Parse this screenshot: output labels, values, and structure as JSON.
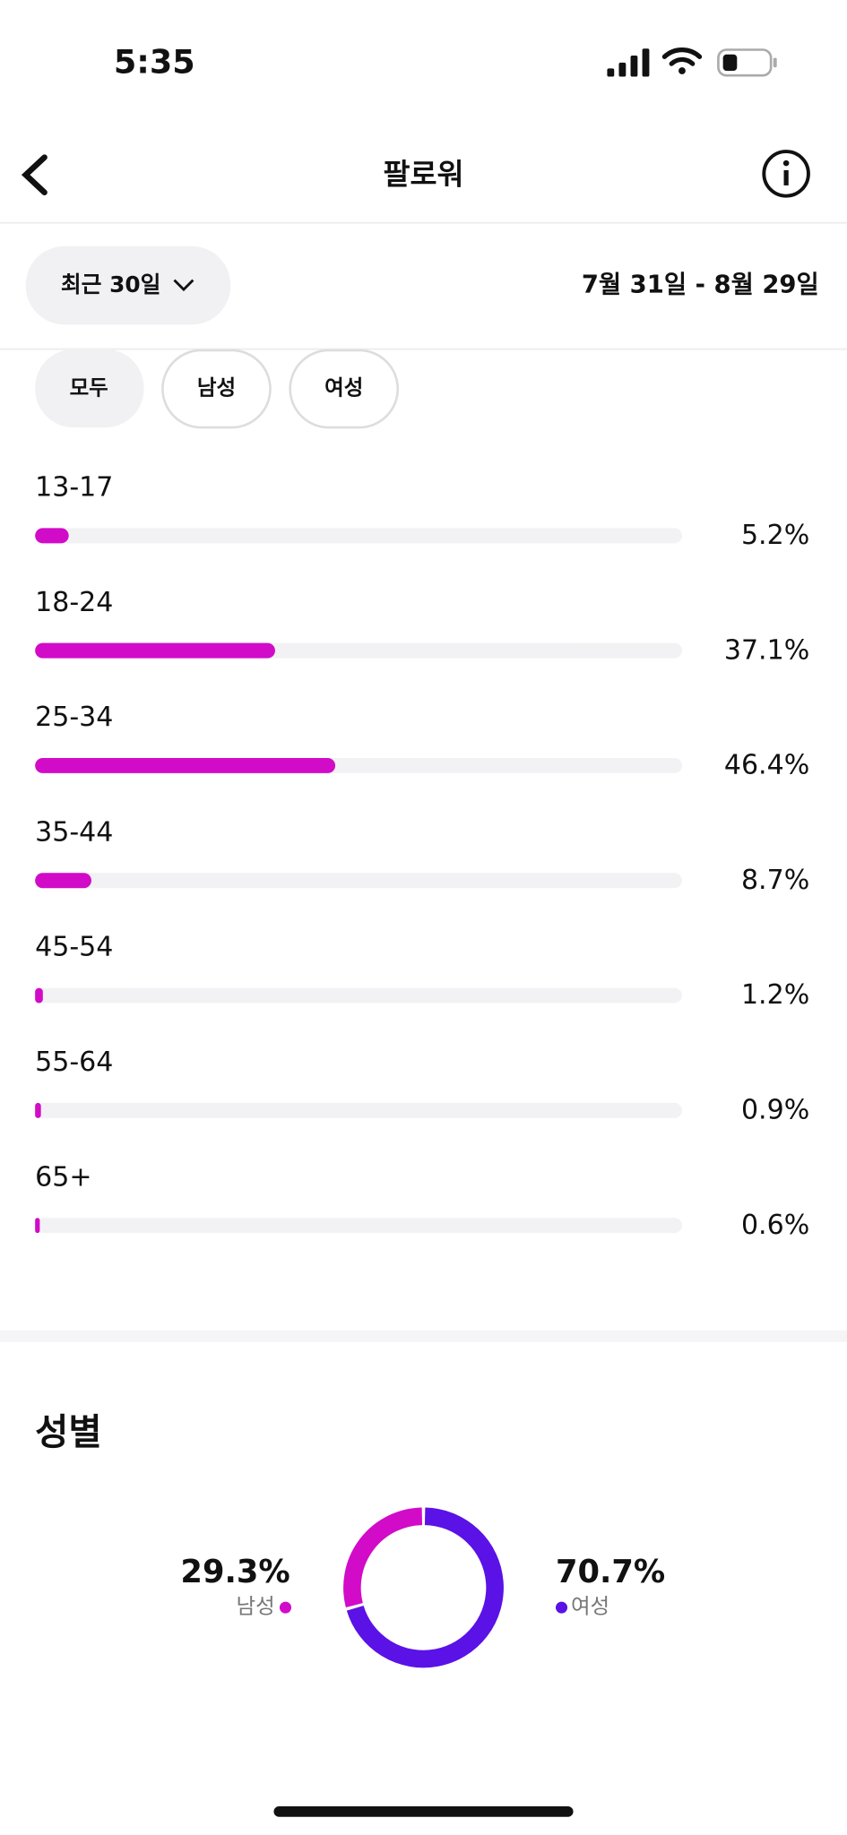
{
  "status_bar": {
    "time": "5:35"
  },
  "header": {
    "title": "팔로워"
  },
  "range": {
    "label": "최근 30일",
    "dates": "7월 31일 - 8월 29일"
  },
  "tabs": [
    "모두",
    "남성",
    "여성"
  ],
  "age_chart": {
    "type": "bar",
    "categories": [
      "13-17",
      "18-24",
      "25-34",
      "35-44",
      "45-54",
      "55-64",
      "65+"
    ],
    "values": [
      5.2,
      37.1,
      46.4,
      8.7,
      1.2,
      0.9,
      0.6
    ],
    "value_labels": [
      "5.2%",
      "37.1%",
      "46.4%",
      "8.7%",
      "1.2%",
      "0.9%",
      "0.6%"
    ],
    "color": "#d10bc8",
    "xlim": [
      0,
      100
    ]
  },
  "gender_chart": {
    "type": "donut",
    "title": "성별",
    "series": [
      {
        "name": "남성",
        "value": 29.3,
        "value_label": "29.3%",
        "color": "#d10bc8"
      },
      {
        "name": "여성",
        "value": 70.7,
        "value_label": "70.7%",
        "color": "#5a12e6"
      }
    ]
  }
}
